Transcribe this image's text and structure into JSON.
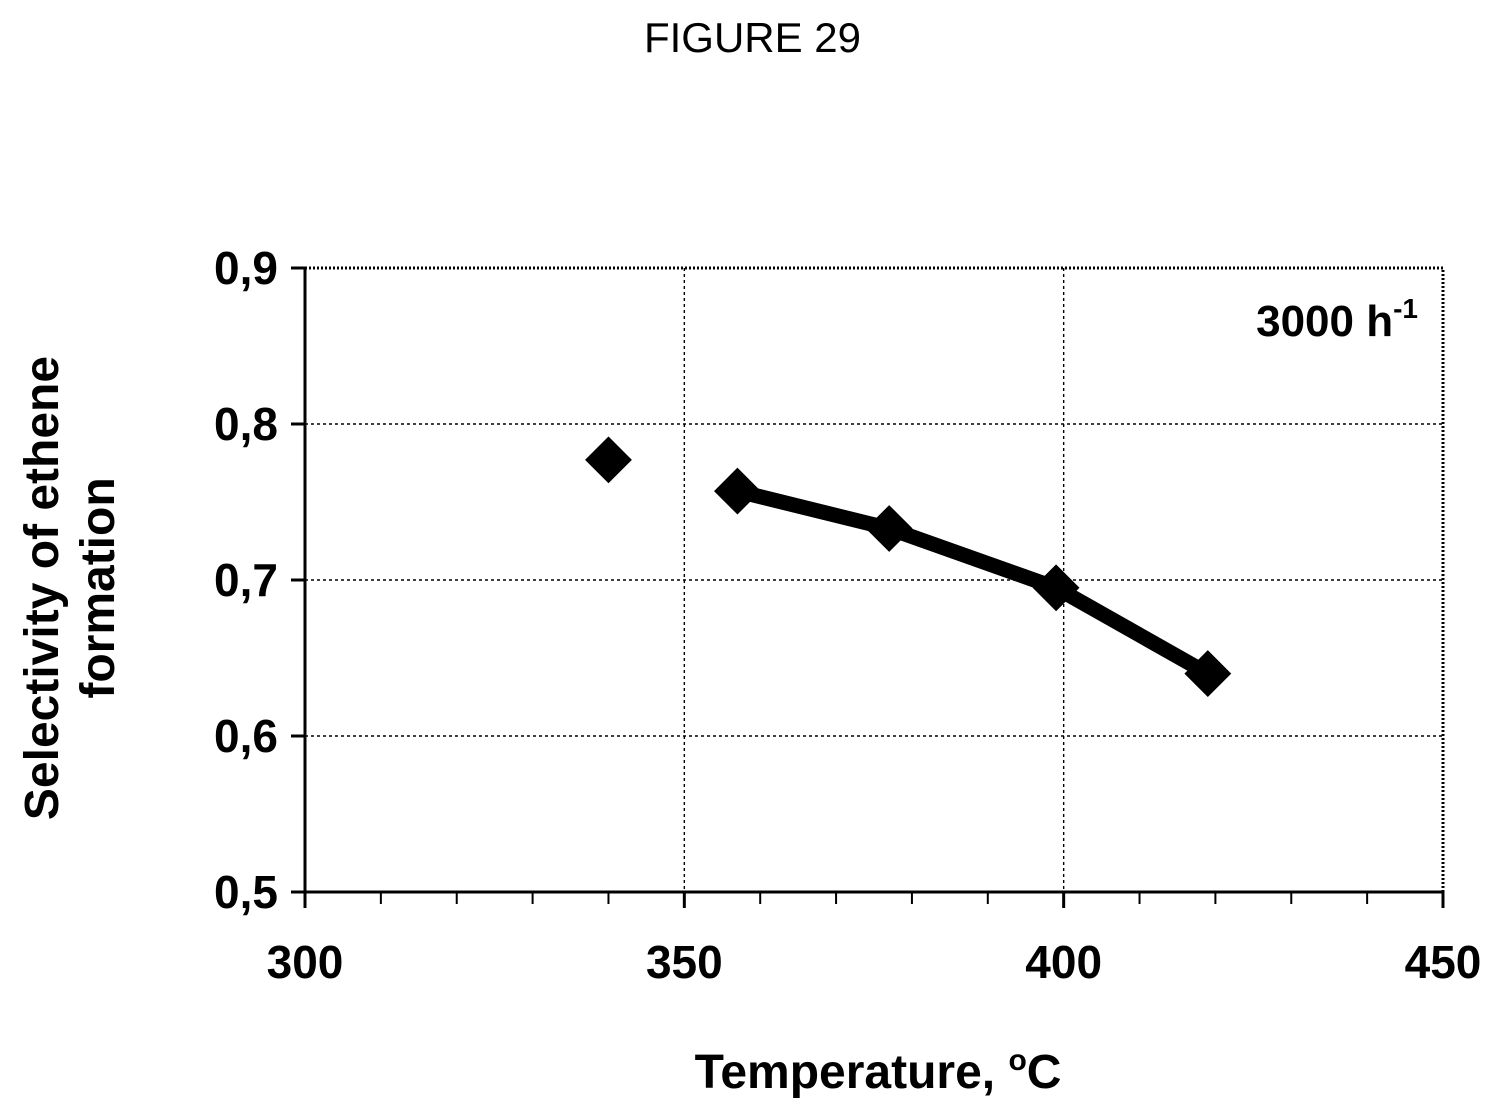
{
  "figure_label": "FIGURE 29",
  "chart_data": {
    "type": "line",
    "title": "",
    "xlabel": "Temperature, ",
    "xlabel_sup": "o",
    "xlabel_unit": "C",
    "ylabel_line1": "Selectivity of ethene",
    "ylabel_line2": "formation",
    "xlim": [
      300,
      450
    ],
    "ylim": [
      0.5,
      0.9
    ],
    "x_ticks": [
      300,
      350,
      400,
      450
    ],
    "x_tick_labels": [
      "300",
      "350",
      "400",
      "450"
    ],
    "y_ticks": [
      0.5,
      0.6,
      0.7,
      0.8,
      0.9
    ],
    "y_tick_labels": [
      "0,5",
      "0,6",
      "0,7",
      "0,8",
      "0,9"
    ],
    "x_minor_step": 10,
    "grid": true,
    "annotation": {
      "text": "3000 h",
      "sup": "-1",
      "placement": "top-right"
    },
    "series": [
      {
        "marker": "diamond",
        "line": false,
        "x": [
          340
        ],
        "y": [
          0.777
        ]
      },
      {
        "marker": "diamond",
        "line": true,
        "x": [
          357,
          377,
          399,
          419
        ],
        "y": [
          0.757,
          0.733,
          0.695,
          0.64
        ]
      }
    ],
    "colors": {
      "series": "#000000",
      "grid": "#000000"
    }
  }
}
